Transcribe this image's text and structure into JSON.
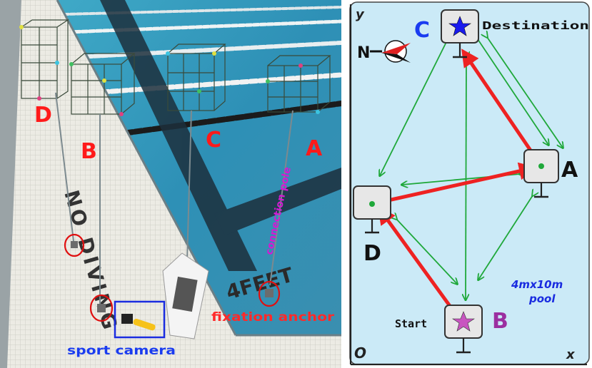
{
  "photo": {
    "labels": {
      "d": "D",
      "b": "B",
      "c": "C",
      "a": "A"
    },
    "annotations": {
      "connection_pole": "connection pole",
      "fixation_anchor": "fixation anchor",
      "sport_camera": "sport camera"
    },
    "deck_text": {
      "wall": "NO DIVING",
      "floor": "4FEET"
    },
    "colors": {
      "label": "#ff1a1a",
      "pole_text": "#d21bd2",
      "camera_text": "#1a3cf0"
    }
  },
  "map": {
    "axes": {
      "y": "y",
      "x": "x",
      "origin": "O"
    },
    "compass_letter": "N",
    "nodes": {
      "c": {
        "letter": "C",
        "caption": "Destination",
        "marker": "star-icon",
        "marker_color": "#1a1aee",
        "letter_color": "#1a3cf0"
      },
      "a": {
        "letter": "A"
      },
      "d": {
        "letter": "D"
      },
      "b": {
        "letter": "B",
        "caption": "Start",
        "marker": "star-icon",
        "marker_color": "#c855c0",
        "letter_color": "#9b2fa0"
      }
    },
    "pool_caption": {
      "line1": "4mx10m",
      "line2": "pool"
    },
    "colors": {
      "background": "#cbeaf7",
      "path": "#ee2222",
      "links": "#1fa83a"
    }
  }
}
